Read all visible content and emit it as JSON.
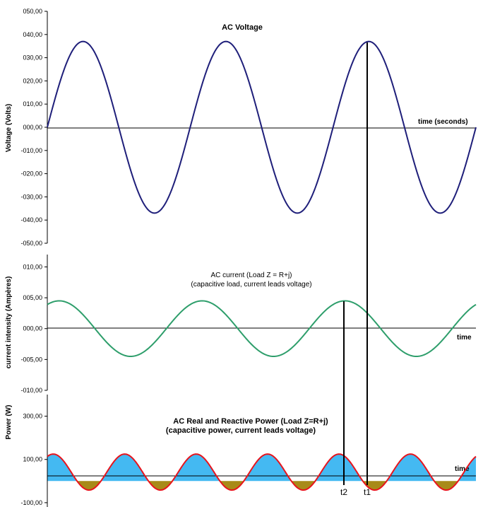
{
  "chart_data": [
    {
      "id": "voltage",
      "type": "line",
      "title": "AC Voltage",
      "xlabel": "time  (seconds)",
      "ylabel": "Voltage (Volts)",
      "ylim": [
        -50,
        50
      ],
      "xlim": [
        0,
        3
      ],
      "yticks": [
        50,
        40,
        30,
        20,
        10,
        0,
        -10,
        -20,
        -30,
        -40,
        -50
      ],
      "ytick_labels": [
        "050,00",
        "040,00",
        "030,00",
        "020,00",
        "010,00",
        "000,00",
        "-010,00",
        "-020,00",
        "-030,00",
        "-040,00",
        "-050,00"
      ],
      "series": [
        {
          "amplitude": 37,
          "cycles": 3,
          "phase_deg": 0,
          "color": "#1f1f7a"
        }
      ]
    },
    {
      "id": "current",
      "type": "line",
      "title": [
        "AC current (Load Z = R+j)",
        "(capacitive load, current leads voltage)"
      ],
      "xlabel": "time",
      "ylabel": "current  intensity (Ampères)",
      "ylim": [
        -10,
        12
      ],
      "xlim": [
        0,
        3
      ],
      "yticks": [
        10,
        5,
        0,
        -5,
        -10
      ],
      "ytick_labels": [
        "010,00",
        "005,00",
        "000,00",
        "-005,00",
        "-010,00"
      ],
      "series": [
        {
          "amplitude": 4.5,
          "cycles": 3,
          "phase_deg": 60,
          "color": "#2e9e6b"
        }
      ]
    },
    {
      "id": "power",
      "type": "area",
      "title": [
        "AC Real and Reactive Power (Load Z=R+j)",
        "(capacitive power, current leads voltage)"
      ],
      "xlabel": "time",
      "ylabel": "Power (W)",
      "ylim": [
        -120,
        400
      ],
      "xlim": [
        0,
        3
      ],
      "yticks": [
        300,
        100,
        -100
      ],
      "ytick_labels": [
        "300,00",
        "100,00",
        "-100,00"
      ],
      "series": [
        {
          "offset": 41.5,
          "amplitude": 83.25,
          "cycles": 6,
          "phase_deg": 60,
          "line_color": "#e8141c",
          "positive_fill": "#44b9f2",
          "negative_fill": "#a88a18"
        }
      ]
    }
  ],
  "markers": [
    {
      "label": "t2"
    },
    {
      "label": "t1"
    }
  ]
}
